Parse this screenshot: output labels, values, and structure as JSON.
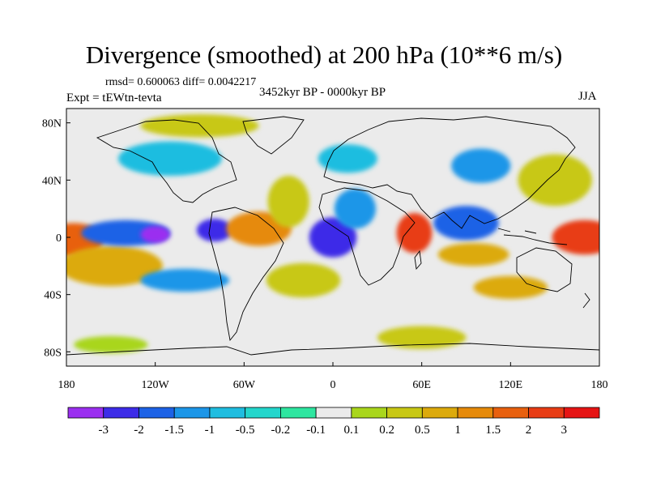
{
  "title": "Divergence (smoothed) at 200 hPa (10**6 m/s)",
  "stats_line": "rmsd= 0.600063 diff= 0.0042217",
  "experiment": "Expt = tEWtn-tevta",
  "period": "3452kyr BP - 0000kyr BP",
  "season": "JJA",
  "map": {
    "projection": "cylindrical equidistant",
    "lon_range": [
      -180,
      180
    ],
    "lat_range": [
      -90,
      90
    ],
    "lat_ticks": [
      {
        "value": 80,
        "label": "80N"
      },
      {
        "value": 40,
        "label": "40N"
      },
      {
        "value": 0,
        "label": "0"
      },
      {
        "value": -40,
        "label": "40S"
      },
      {
        "value": -80,
        "label": "80S"
      }
    ],
    "lon_ticks": [
      {
        "value": -180,
        "label": "180"
      },
      {
        "value": -120,
        "label": "120W"
      },
      {
        "value": -60,
        "label": "60W"
      },
      {
        "value": 0,
        "label": "0"
      },
      {
        "value": 60,
        "label": "60E"
      },
      {
        "value": 120,
        "label": "120E"
      },
      {
        "value": 180,
        "label": "180"
      }
    ],
    "background_color": "#ebebeb"
  },
  "colorbar": {
    "colors": [
      "#9b2ff0",
      "#3d2ce8",
      "#1d62e6",
      "#1c96e8",
      "#1fbde0",
      "#23d6cc",
      "#2ee6a0",
      "#ebebeb",
      "#a9d61c",
      "#c8c814",
      "#dcaa0c",
      "#e68a0a",
      "#e8600e",
      "#e83c14",
      "#e61414"
    ],
    "labels": [
      "-3",
      "-2",
      "-1.5",
      "-1",
      "-0.5",
      "-0.2",
      "-0.1",
      "0.1",
      "0.2",
      "0.5",
      "1",
      "1.5",
      "2",
      "3"
    ]
  },
  "field_anomalies": [
    {
      "lon": 170,
      "lat": 0,
      "rx": 22,
      "ry": 12,
      "value": 3
    },
    {
      "lon": -175,
      "lat": -2,
      "rx": 20,
      "ry": 12,
      "value": 2
    },
    {
      "lon": -150,
      "lat": -20,
      "rx": 35,
      "ry": 14,
      "value": 1
    },
    {
      "lon": -140,
      "lat": 3,
      "rx": 30,
      "ry": 9,
      "value": -1.5
    },
    {
      "lon": -120,
      "lat": 2,
      "rx": 10,
      "ry": 6,
      "value": -3
    },
    {
      "lon": -80,
      "lat": 5,
      "rx": 12,
      "ry": 8,
      "value": -2
    },
    {
      "lon": -50,
      "lat": 6,
      "rx": 22,
      "ry": 12,
      "value": 1.5
    },
    {
      "lon": -30,
      "lat": 25,
      "rx": 14,
      "ry": 18,
      "value": 0.5
    },
    {
      "lon": 0,
      "lat": 0,
      "rx": 16,
      "ry": 14,
      "value": -2
    },
    {
      "lon": 15,
      "lat": 20,
      "rx": 14,
      "ry": 14,
      "value": -1
    },
    {
      "lon": 55,
      "lat": 3,
      "rx": 12,
      "ry": 14,
      "value": 3
    },
    {
      "lon": 90,
      "lat": 10,
      "rx": 22,
      "ry": 12,
      "value": -1.5
    },
    {
      "lon": 95,
      "lat": -12,
      "rx": 24,
      "ry": 8,
      "value": 1
    },
    {
      "lon": 150,
      "lat": 40,
      "rx": 25,
      "ry": 18,
      "value": 0.5
    },
    {
      "lon": 100,
      "lat": 50,
      "rx": 20,
      "ry": 12,
      "value": -1
    },
    {
      "lon": -110,
      "lat": 55,
      "rx": 35,
      "ry": 12,
      "value": -0.5
    },
    {
      "lon": -90,
      "lat": 78,
      "rx": 40,
      "ry": 8,
      "value": 0.5
    },
    {
      "lon": 10,
      "lat": 55,
      "rx": 20,
      "ry": 10,
      "value": -0.5
    },
    {
      "lon": -20,
      "lat": -30,
      "rx": 25,
      "ry": 12,
      "value": 0.5
    },
    {
      "lon": -100,
      "lat": -30,
      "rx": 30,
      "ry": 8,
      "value": -1
    },
    {
      "lon": 60,
      "lat": -70,
      "rx": 30,
      "ry": 8,
      "value": 0.5
    },
    {
      "lon": -150,
      "lat": -75,
      "rx": 25,
      "ry": 6,
      "value": 0.2
    },
    {
      "lon": 120,
      "lat": -35,
      "rx": 25,
      "ry": 8,
      "value": 1
    }
  ]
}
